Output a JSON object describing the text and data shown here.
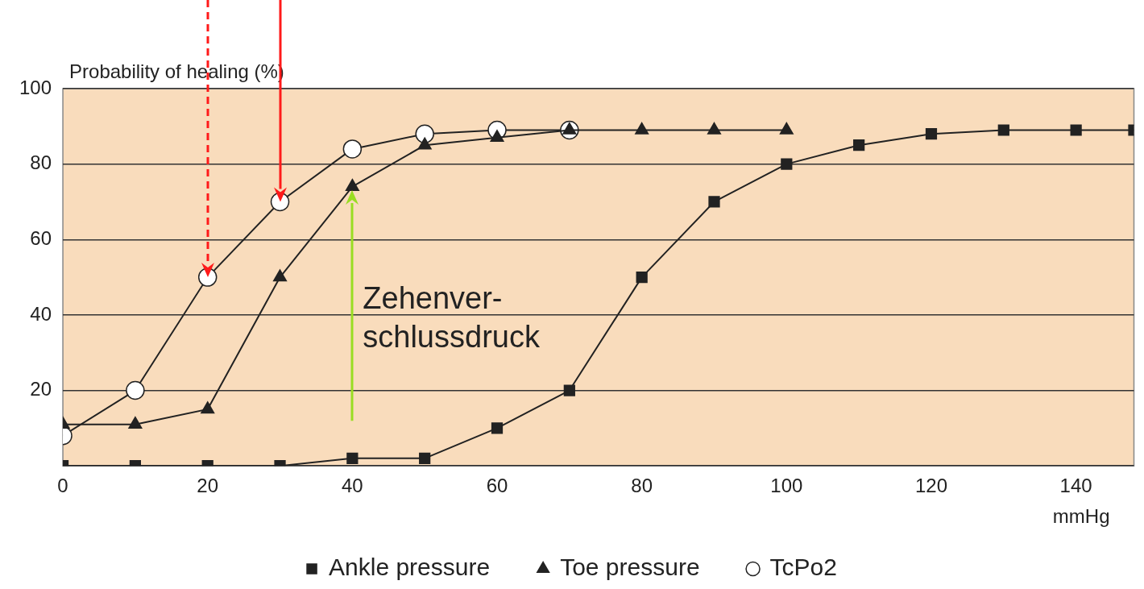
{
  "chart_data": {
    "type": "line",
    "ylabel": "Probability of healing (%)",
    "xlabel": "mmHg",
    "x": [
      0,
      10,
      20,
      30,
      40,
      50,
      60,
      70,
      80,
      90,
      100,
      110,
      120,
      130,
      140,
      148
    ],
    "xlim": [
      0,
      148
    ],
    "xticks": [
      0,
      20,
      40,
      60,
      80,
      100,
      120,
      140
    ],
    "ylim": [
      0,
      100
    ],
    "yticks": [
      {
        "value": 0,
        "label": null
      },
      20,
      40,
      60,
      80,
      100
    ],
    "grid": "y",
    "legend": "bottom",
    "series": [
      {
        "name": "Ankle pressure",
        "color": "#222222",
        "marker": "square",
        "values": [
          0,
          0,
          0,
          0,
          2,
          2,
          10,
          20,
          50,
          70,
          80,
          85,
          88,
          89,
          89,
          89
        ]
      },
      {
        "name": "Toe pressure",
        "color": "#222222",
        "marker": "triangle",
        "x": [
          0,
          10,
          20,
          30,
          40,
          50,
          60,
          70,
          80,
          90,
          100
        ],
        "values": [
          11,
          11,
          15,
          50,
          74,
          85,
          87,
          89,
          89,
          89,
          89
        ]
      },
      {
        "name": "TcPo2",
        "color": "#222222",
        "marker": "circle",
        "x": [
          0,
          10,
          20,
          30,
          40,
          50,
          60,
          70
        ],
        "values": [
          8,
          20,
          50,
          70,
          84,
          88,
          89,
          89
        ]
      }
    ],
    "annotations": [
      "Zehenver-\nschlussdruck"
    ]
  }
}
